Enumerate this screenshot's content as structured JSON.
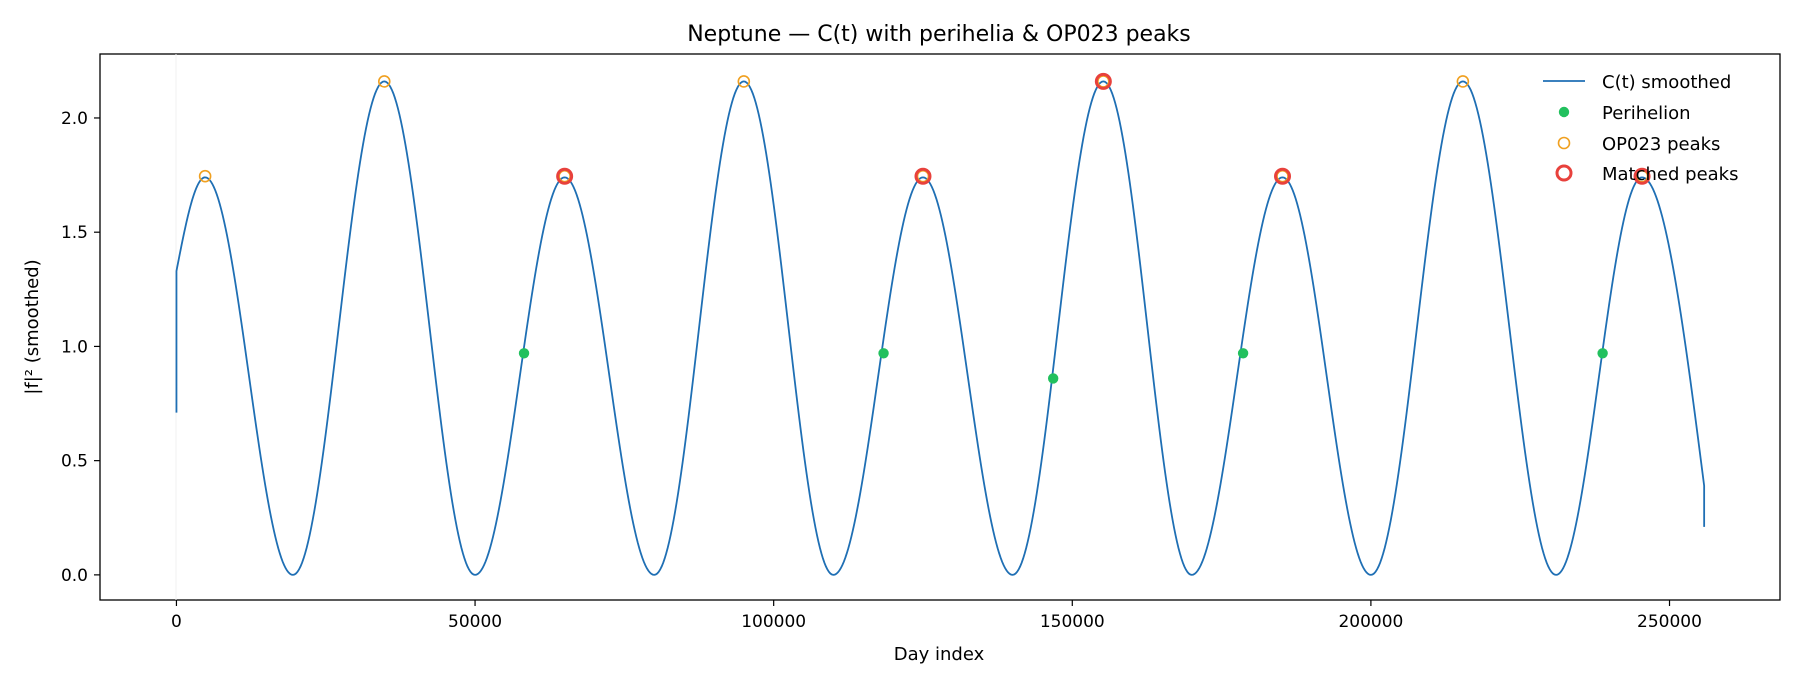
{
  "chart_data": {
    "type": "line",
    "title": "Neptune — C(t) with perihelia & OP023 peaks",
    "xlabel": "Day index",
    "ylabel": "|f|² (smoothed)",
    "xlim": [
      -12800,
      268500
    ],
    "ylim": [
      -0.11,
      2.28
    ],
    "xticks": [
      0,
      50000,
      100000,
      150000,
      200000,
      250000
    ],
    "xtick_labels": [
      "0",
      "50000",
      "100000",
      "150000",
      "200000",
      "250000"
    ],
    "yticks": [
      0.0,
      0.5,
      1.0,
      1.5,
      2.0
    ],
    "ytick_labels": [
      "0.0",
      "0.5",
      "1.0",
      "1.5",
      "2.0"
    ],
    "grid": false,
    "legend_position": "top-right",
    "colors": {
      "line": "#1f6fb4",
      "perihelion": "#22c05e",
      "op023": "#f0a020",
      "matched": "#e8413c"
    },
    "series": [
      {
        "name": "C(t) smoothed",
        "kind": "line",
        "x_start": 0,
        "x_end": 255800,
        "start_values": [
          0.71,
          1.33
        ],
        "end_values": [
          0.39,
          0.21
        ],
        "peaks": [
          {
            "x": 4800,
            "y": 1.74
          },
          {
            "x": 34800,
            "y": 2.16
          },
          {
            "x": 65000,
            "y": 1.74
          },
          {
            "x": 95000,
            "y": 2.16
          },
          {
            "x": 125000,
            "y": 1.74
          },
          {
            "x": 155200,
            "y": 2.16
          },
          {
            "x": 185200,
            "y": 1.74
          },
          {
            "x": 215400,
            "y": 2.16
          },
          {
            "x": 245400,
            "y": 1.74
          }
        ],
        "troughs": [
          {
            "x": 19500,
            "y": 0.0
          },
          {
            "x": 50000,
            "y": 0.0
          },
          {
            "x": 80000,
            "y": 0.0
          },
          {
            "x": 110000,
            "y": 0.0
          },
          {
            "x": 140000,
            "y": 0.0
          },
          {
            "x": 170000,
            "y": 0.0
          },
          {
            "x": 200000,
            "y": 0.0
          },
          {
            "x": 231000,
            "y": 0.0
          }
        ]
      },
      {
        "name": "Perihelion",
        "kind": "scatter-filled",
        "points": [
          {
            "x": 58200,
            "y": 0.97
          },
          {
            "x": 118400,
            "y": 0.97
          },
          {
            "x": 146800,
            "y": 0.86
          },
          {
            "x": 178600,
            "y": 0.97
          },
          {
            "x": 238800,
            "y": 0.97
          }
        ]
      },
      {
        "name": "OP023 peaks",
        "kind": "scatter-open",
        "points": [
          {
            "x": 4800,
            "y": 1.745
          },
          {
            "x": 34800,
            "y": 2.16
          },
          {
            "x": 65000,
            "y": 1.745
          },
          {
            "x": 95000,
            "y": 2.16
          },
          {
            "x": 125000,
            "y": 1.745
          },
          {
            "x": 155200,
            "y": 2.16
          },
          {
            "x": 185200,
            "y": 1.745
          },
          {
            "x": 215400,
            "y": 2.16
          },
          {
            "x": 245400,
            "y": 1.745
          }
        ]
      },
      {
        "name": "Matched peaks",
        "kind": "scatter-open-large",
        "points": [
          {
            "x": 65000,
            "y": 1.745
          },
          {
            "x": 125000,
            "y": 1.745
          },
          {
            "x": 155200,
            "y": 2.16
          },
          {
            "x": 185200,
            "y": 1.745
          },
          {
            "x": 245400,
            "y": 1.745
          }
        ]
      }
    ],
    "legend": [
      "C(t) smoothed",
      "Perihelion",
      "OP023 peaks",
      "Matched peaks"
    ]
  }
}
